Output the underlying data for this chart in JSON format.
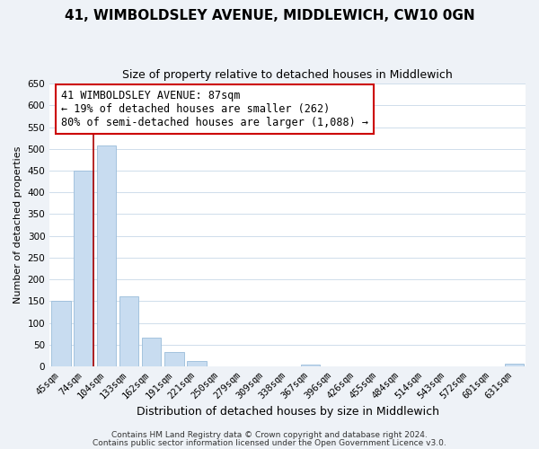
{
  "title": "41, WIMBOLDSLEY AVENUE, MIDDLEWICH, CW10 0GN",
  "subtitle": "Size of property relative to detached houses in Middlewich",
  "xlabel": "Distribution of detached houses by size in Middlewich",
  "ylabel": "Number of detached properties",
  "bar_labels": [
    "45sqm",
    "74sqm",
    "104sqm",
    "133sqm",
    "162sqm",
    "191sqm",
    "221sqm",
    "250sqm",
    "279sqm",
    "309sqm",
    "338sqm",
    "367sqm",
    "396sqm",
    "426sqm",
    "455sqm",
    "484sqm",
    "514sqm",
    "543sqm",
    "572sqm",
    "601sqm",
    "631sqm"
  ],
  "bar_values": [
    150,
    450,
    507,
    160,
    67,
    32,
    12,
    0,
    0,
    0,
    0,
    5,
    0,
    0,
    0,
    0,
    0,
    0,
    0,
    0,
    7
  ],
  "bar_color": "#c8dcf0",
  "bar_edge_color": "#9abcda",
  "highlight_line_color": "#aa0000",
  "annotation_text": "41 WIMBOLDSLEY AVENUE: 87sqm\n← 19% of detached houses are smaller (262)\n80% of semi-detached houses are larger (1,088) →",
  "annotation_box_facecolor": "#ffffff",
  "annotation_box_edgecolor": "#cc0000",
  "ylim": [
    0,
    650
  ],
  "yticks": [
    0,
    50,
    100,
    150,
    200,
    250,
    300,
    350,
    400,
    450,
    500,
    550,
    600,
    650
  ],
  "footer1": "Contains HM Land Registry data © Crown copyright and database right 2024.",
  "footer2": "Contains public sector information licensed under the Open Government Licence v3.0.",
  "background_color": "#eef2f7",
  "plot_background_color": "#ffffff",
  "grid_color": "#c8d8e8",
  "title_fontsize": 11,
  "subtitle_fontsize": 9,
  "xlabel_fontsize": 9,
  "ylabel_fontsize": 8,
  "tick_fontsize": 7.5,
  "annotation_fontsize": 8.5,
  "footer_fontsize": 6.5
}
